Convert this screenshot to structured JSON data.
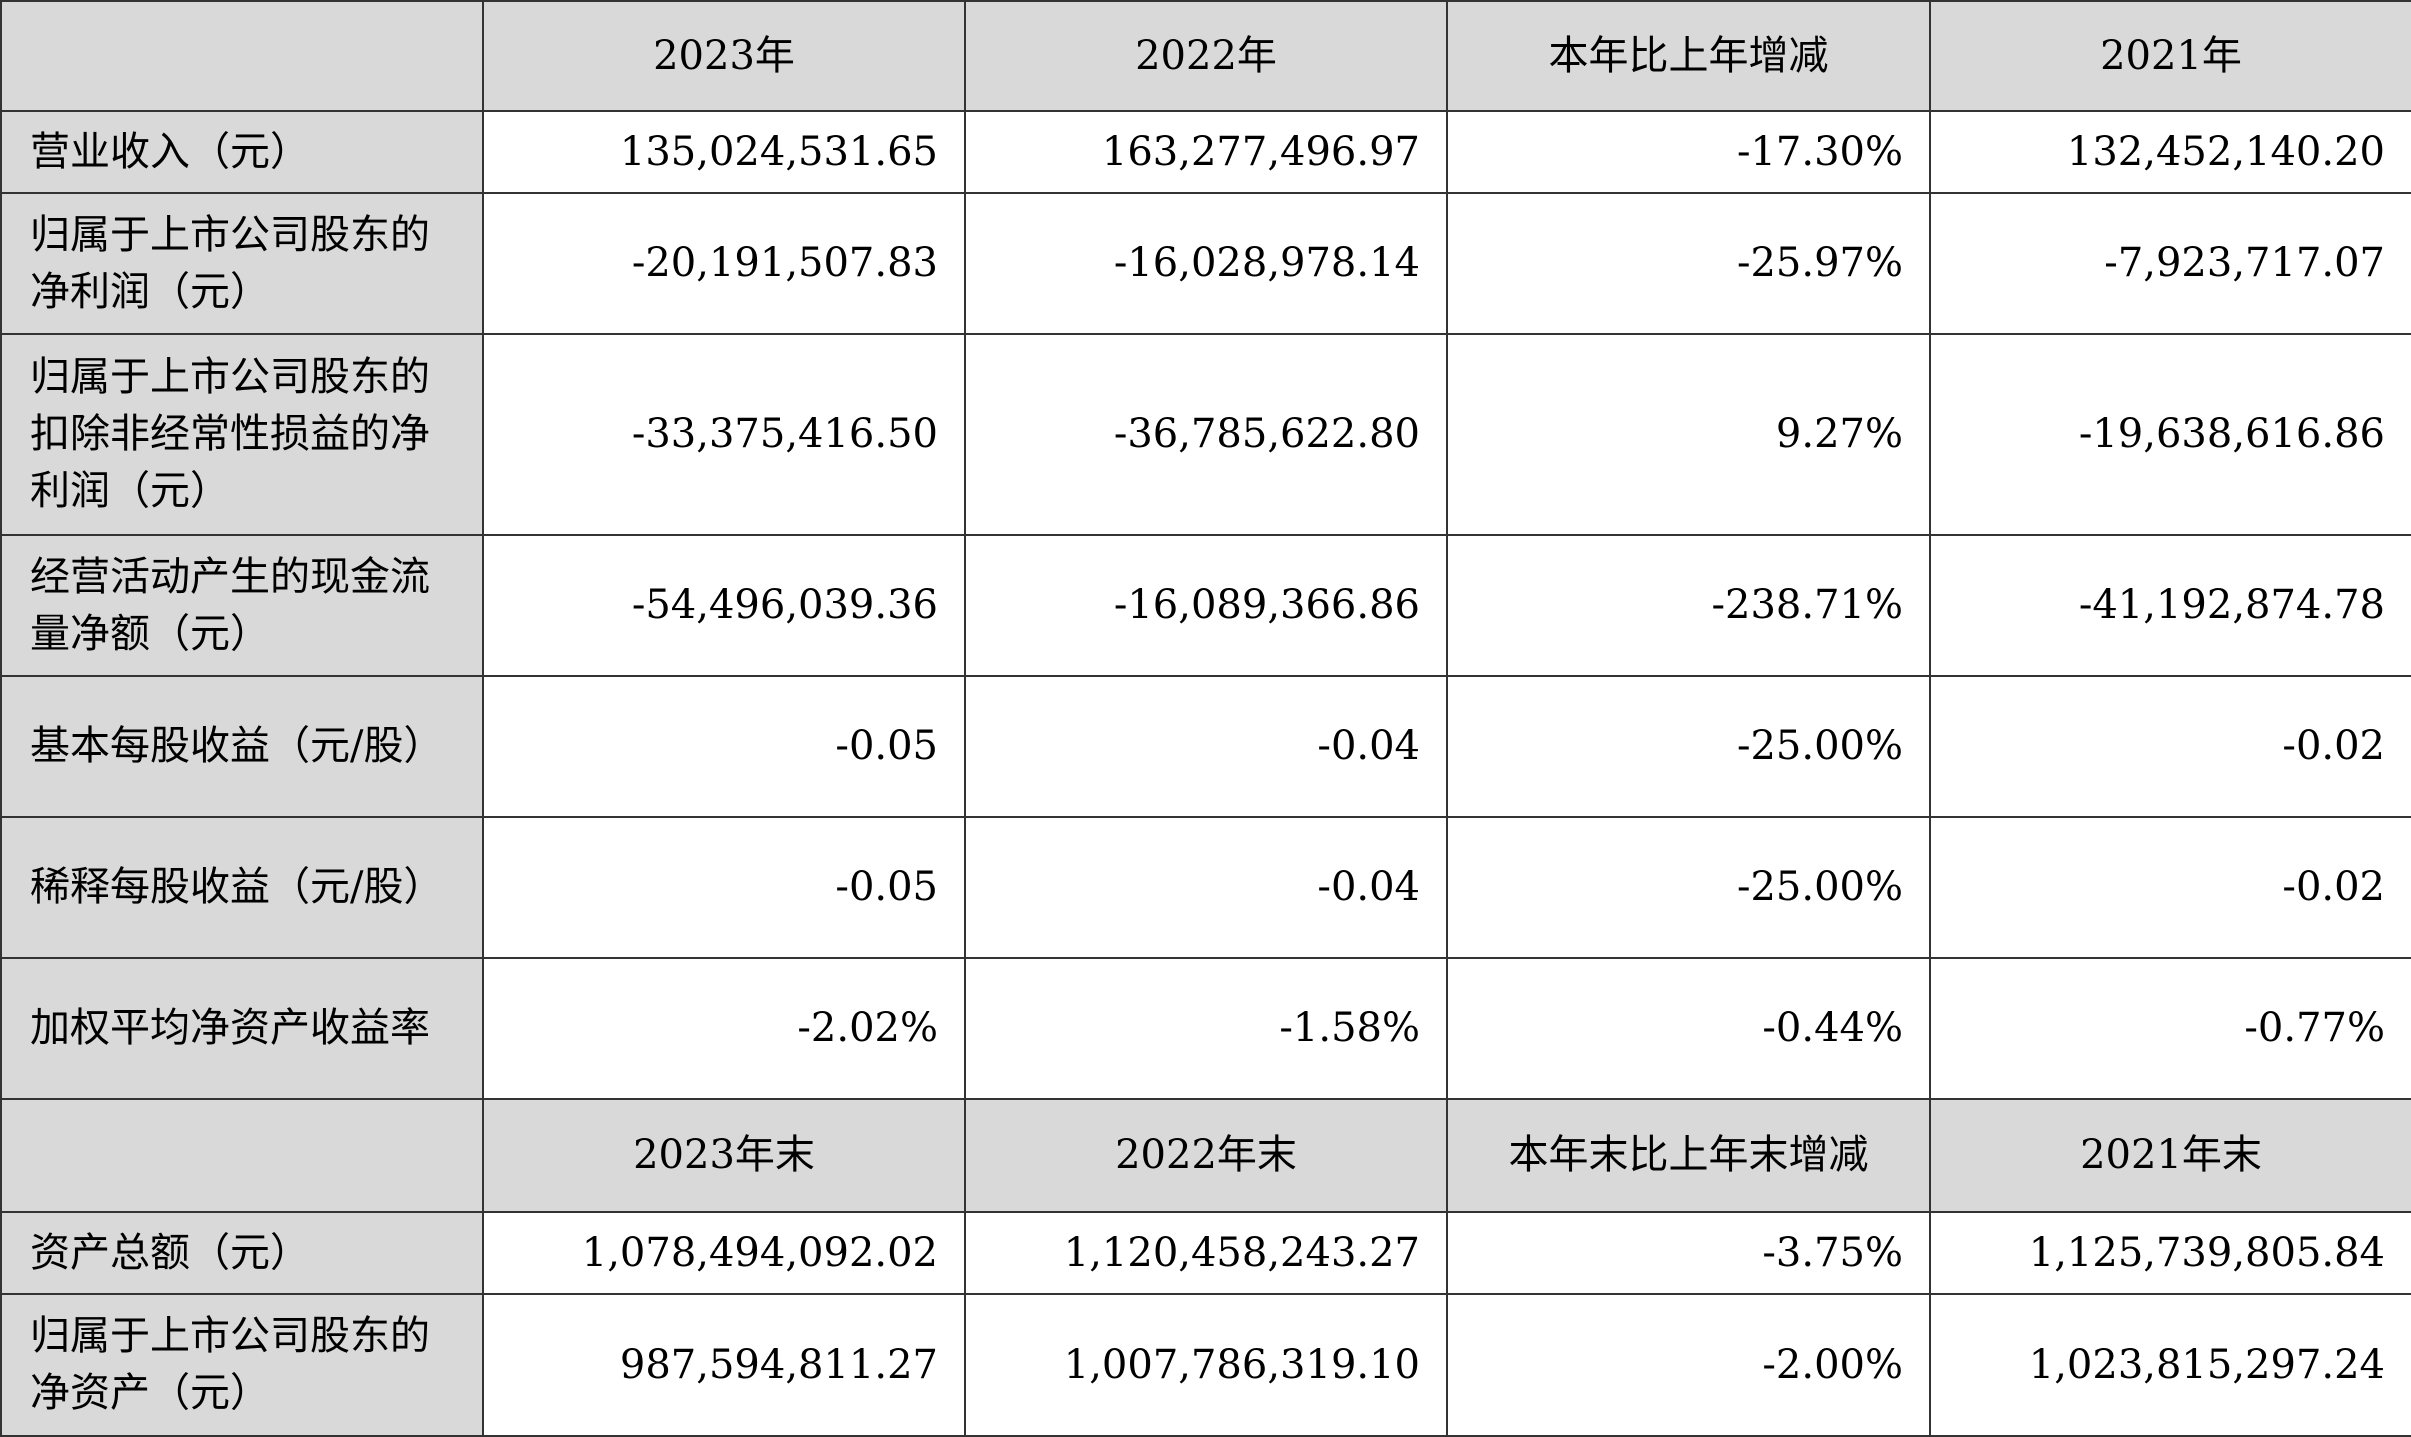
{
  "header1": [
    "",
    "2023年",
    "2022年",
    "本年比上年增减",
    "2021年"
  ],
  "rows1": [
    {
      "label": "营业收入（元）",
      "values": [
        "135,024,531.65",
        "163,277,496.97",
        "-17.30%",
        "132,452,140.20"
      ]
    },
    {
      "label": "归属于上市公司股东的净利润（元）",
      "values": [
        "-20,191,507.83",
        "-16,028,978.14",
        "-25.97%",
        "-7,923,717.07"
      ]
    },
    {
      "label": "归属于上市公司股东的扣除非经常性损益的净利润（元）",
      "values": [
        "-33,375,416.50",
        "-36,785,622.80",
        "9.27%",
        "-19,638,616.86"
      ]
    },
    {
      "label": "经营活动产生的现金流量净额（元）",
      "values": [
        "-54,496,039.36",
        "-16,089,366.86",
        "-238.71%",
        "-41,192,874.78"
      ]
    },
    {
      "label": "基本每股收益（元/股）",
      "values": [
        "-0.05",
        "-0.04",
        "-25.00%",
        "-0.02"
      ]
    },
    {
      "label": "稀释每股收益（元/股）",
      "values": [
        "-0.05",
        "-0.04",
        "-25.00%",
        "-0.02"
      ]
    },
    {
      "label": "加权平均净资产收益率",
      "values": [
        "-2.02%",
        "-1.58%",
        "-0.44%",
        "-0.77%"
      ]
    }
  ],
  "header2": [
    "",
    "2023年末",
    "2022年末",
    "本年末比上年末增减",
    "2021年末"
  ],
  "rows2": [
    {
      "label": "资产总额（元）",
      "values": [
        "1,078,494,092.02",
        "1,120,458,243.27",
        "-3.75%",
        "1,125,739,805.84"
      ]
    },
    {
      "label": "归属于上市公司股东的净资产（元）",
      "values": [
        "987,594,811.27",
        "1,007,786,319.10",
        "-2.00%",
        "1,023,815,297.24"
      ]
    }
  ]
}
